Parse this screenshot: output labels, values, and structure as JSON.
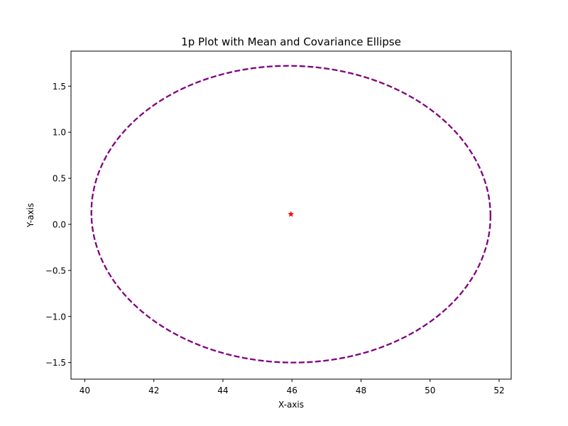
{
  "chart_data": {
    "type": "scatter",
    "title": "1p Plot with Mean and Covariance Ellipse",
    "xlabel": "X-axis",
    "ylabel": "Y-axis",
    "xlim": [
      39.6,
      52.35
    ],
    "ylim": [
      -1.68,
      1.88
    ],
    "xticks": [
      40,
      42,
      44,
      46,
      48,
      50,
      52
    ],
    "xtick_labels": [
      "40",
      "42",
      "44",
      "46",
      "48",
      "50",
      "52"
    ],
    "yticks": [
      -1.5,
      -1.0,
      -0.5,
      0.0,
      0.5,
      1.0,
      1.5
    ],
    "ytick_labels": [
      "−1.5",
      "−1.0",
      "−0.5",
      "0.0",
      "0.5",
      "1.0",
      "1.5"
    ],
    "grid": false,
    "mean": {
      "x": 45.97,
      "y": 0.11,
      "marker": "star",
      "color": "#ff0000"
    },
    "ellipse": {
      "center": [
        45.97,
        0.11
      ],
      "semi_x": 5.78,
      "semi_y": 1.61,
      "tilt": -0.02,
      "color": "#800080",
      "style": "dashed"
    }
  }
}
